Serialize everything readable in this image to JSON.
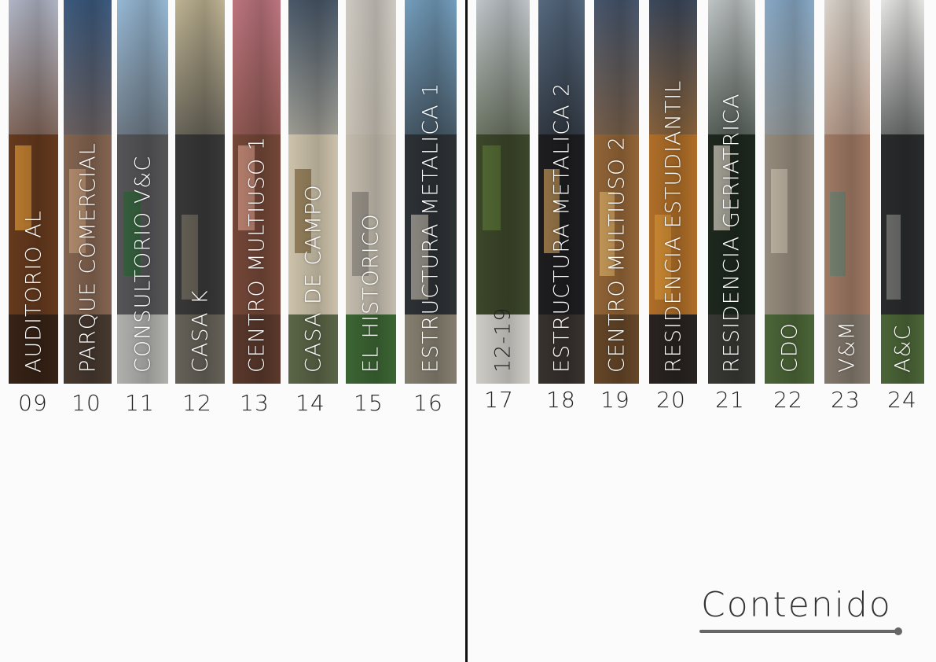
{
  "title": "Contenido",
  "entries": [
    {
      "number": "09",
      "label": "AUDITORIO AL",
      "sky": "#b9bfd1",
      "build": "#6b3d1f",
      "accent": "#e39a3a",
      "ground": "#3a2417"
    },
    {
      "number": "10",
      "label": "PARQUE COMERCIAL",
      "sky": "#3f5f86",
      "build": "#8b6a55",
      "accent": "#c9a27f",
      "ground": "#4a3c32"
    },
    {
      "number": "11",
      "label": "CONSULTORIO V&C",
      "sky": "#9ec2e0",
      "build": "#5a5a5c",
      "accent": "#2f6b3a",
      "ground": "#b9b9b6"
    },
    {
      "number": "12",
      "label": "CASA K",
      "sky": "#c8bc9a",
      "build": "#3b3b3b",
      "accent": "#7c7466",
      "ground": "#6a665c"
    },
    {
      "number": "13",
      "label": "CENTRO MULTIUSO 1",
      "sky": "#c77b86",
      "build": "#7a4b3b",
      "accent": "#d99b8a",
      "ground": "#5f3b2e"
    },
    {
      "number": "14",
      "label": "CASA DE CAMPO",
      "sky": "#4c5c6e",
      "build": "#d8cdb4",
      "accent": "#8a6f44",
      "ground": "#5f6a4a"
    },
    {
      "number": "15",
      "label": "EL HISTORICO",
      "sky": "#d9d4cc",
      "build": "#cfc7b8",
      "accent": "#8f8a82",
      "ground": "#3f6a36"
    },
    {
      "number": "16",
      "label": "ESTRUCTURA METALICA 1",
      "sky": "#7aa6c7",
      "build": "#2f3438",
      "accent": "#b8b2a6",
      "ground": "#8c8576"
    },
    {
      "number": "17",
      "label": "12-19",
      "sky": "#c9cfd4",
      "build": "#3f4a2c",
      "accent": "#5f7a3a",
      "ground": "#d8d6cf"
    },
    {
      "number": "18",
      "label": "ESTRUCTURA METALICA 2",
      "sky": "#5a6f86",
      "build": "#1f1f22",
      "accent": "#c89a5a",
      "ground": "#3a3430"
    },
    {
      "number": "19",
      "label": "CENTRO MULTIUSO 2",
      "sky": "#4a5a72",
      "build": "#9a6a3a",
      "accent": "#e2b46a",
      "ground": "#6b4a2a"
    },
    {
      "number": "20",
      "label": "RESIDENCIA ESTUDIANTIL",
      "sky": "#3f4c60",
      "build": "#b8742a",
      "accent": "#e09a3a",
      "ground": "#2a2522"
    },
    {
      "number": "21",
      "label": "RESIDENCIA GERIATRICA",
      "sky": "#c9cfcf",
      "build": "#1f2a1f",
      "accent": "#dcd6c8",
      "ground": "#3a3a36"
    },
    {
      "number": "22",
      "label": "CDO",
      "sky": "#8fb2d1",
      "build": "#9e9384",
      "accent": "#d2c8b6",
      "ground": "#4f6a3a"
    },
    {
      "number": "23",
      "label": "V&M",
      "sky": "#e6dfd6",
      "build": "#a8806a",
      "accent": "#6e8a7a",
      "ground": "#8a7f72"
    },
    {
      "number": "24",
      "label": "A&C",
      "sky": "#f2f2f0",
      "build": "#2b2e2f",
      "accent": "#8a8a86",
      "ground": "#4f6a3a"
    }
  ]
}
